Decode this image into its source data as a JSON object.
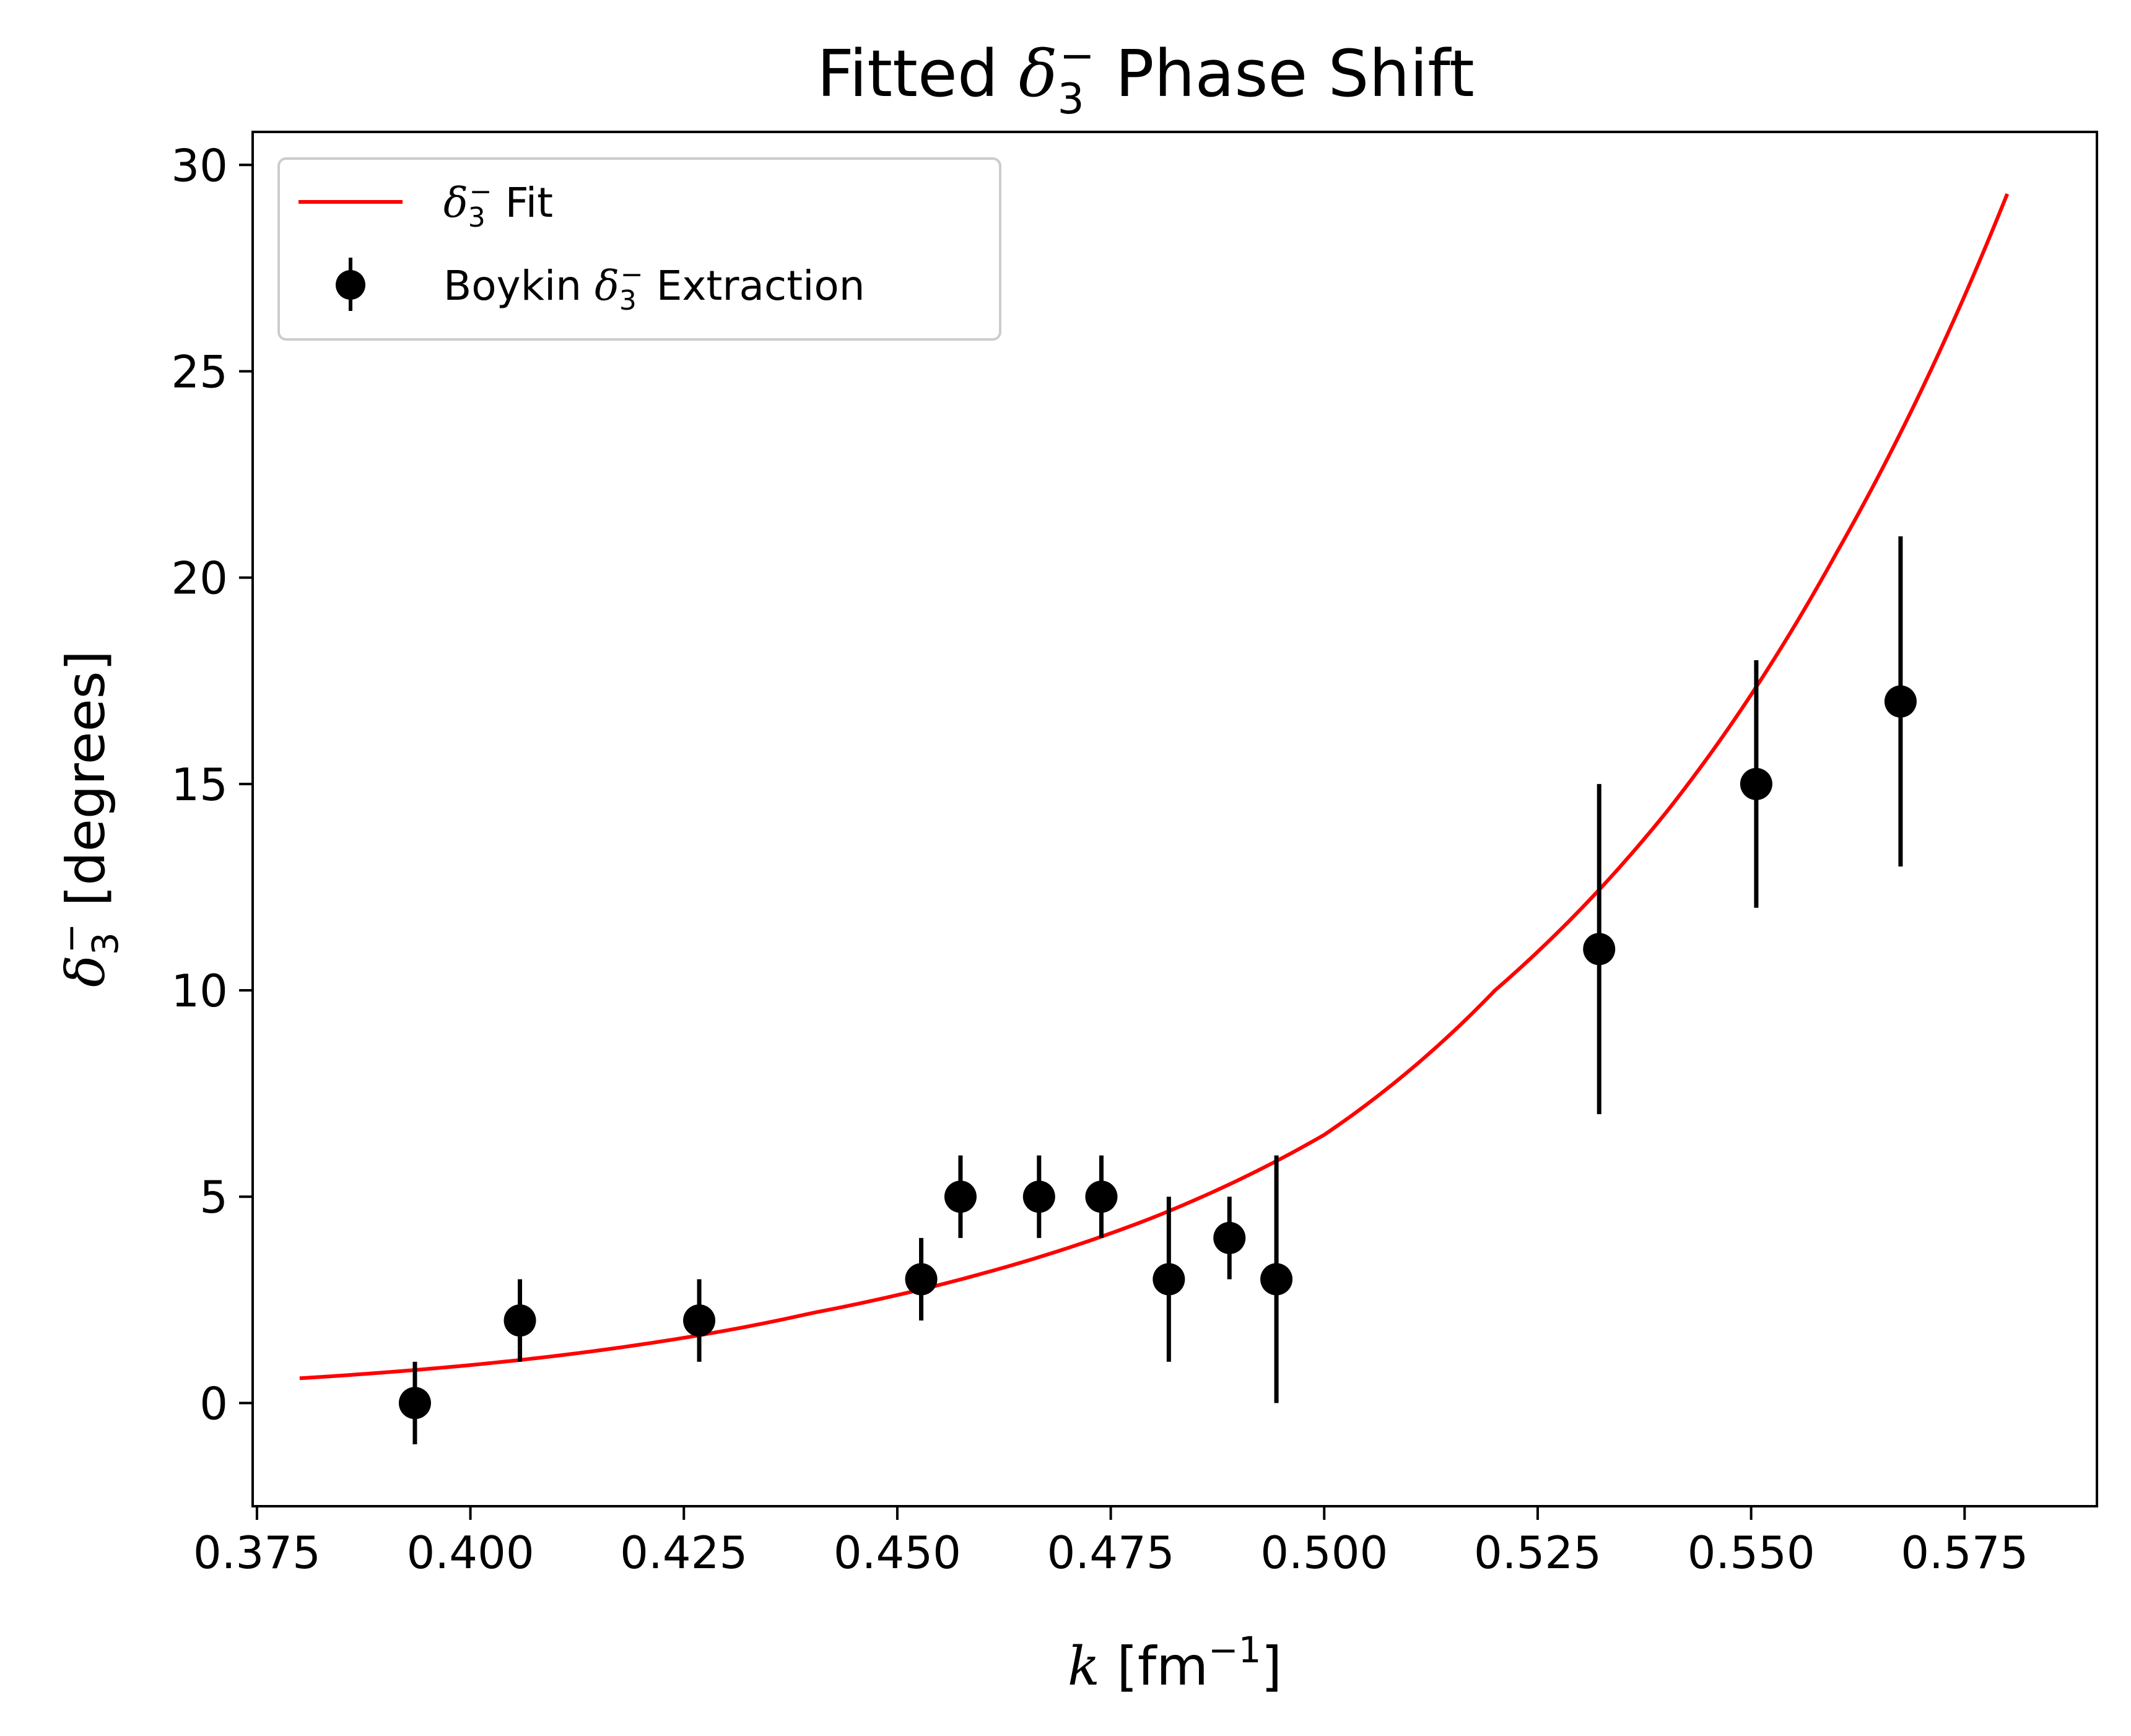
{
  "chart_data": {
    "type": "scatter",
    "title": {
      "prefix": "Fitted ",
      "symbol": "δ",
      "subscript": "3",
      "superscript": "−",
      "suffix": " Phase Shift"
    },
    "xlabel": {
      "symbol": "k",
      "text": " [fm",
      "superscript": "−1",
      "close": "]"
    },
    "ylabel": {
      "symbol": "δ",
      "subscript": "3",
      "superscript": "−",
      "text": " [degrees]"
    },
    "xlim": [
      0.3745,
      0.5905
    ],
    "ylim": [
      -2.5,
      30.8
    ],
    "xticks": [
      0.375,
      0.4,
      0.425,
      0.45,
      0.475,
      0.5,
      0.525,
      0.55,
      0.575
    ],
    "xtick_labels": [
      "0.375",
      "0.400",
      "0.425",
      "0.450",
      "0.475",
      "0.500",
      "0.525",
      "0.550",
      "0.575"
    ],
    "yticks": [
      0,
      5,
      10,
      15,
      20,
      25,
      30
    ],
    "ytick_labels": [
      "0",
      "5",
      "10",
      "15",
      "20",
      "25",
      "30"
    ],
    "grid": false,
    "legend_position": "upper-left",
    "series": [
      {
        "name": "Boykin δ3− Extraction",
        "legend": {
          "prefix": "Boykin ",
          "symbol": "δ",
          "subscript": "3",
          "superscript": "−",
          "suffix": " Extraction"
        },
        "kind": "errorbar",
        "color": "#000000",
        "x": [
          0.3935,
          0.4058,
          0.4268,
          0.4528,
          0.4574,
          0.4666,
          0.4739,
          0.4818,
          0.4889,
          0.4944,
          0.5322,
          0.5506,
          0.5675
        ],
        "y": [
          0,
          2,
          2,
          3,
          5,
          5,
          5,
          3,
          4,
          3,
          11,
          15,
          17
        ],
        "yerr": [
          1,
          1,
          1,
          1,
          1,
          1,
          1,
          2,
          1,
          3,
          4,
          3,
          4
        ]
      },
      {
        "name": "δ3− Fit",
        "legend": {
          "prefix": "",
          "symbol": "δ",
          "subscript": "3",
          "superscript": "−",
          "suffix": " Fit"
        },
        "kind": "line",
        "color": "#ff0000",
        "x_range": [
          0.38,
          0.58
        ],
        "x": [
          0.38,
          0.4,
          0.42,
          0.44,
          0.46,
          0.48,
          0.5,
          0.52,
          0.54,
          0.56,
          0.58
        ],
        "y": [
          0.6,
          0.92,
          1.42,
          2.18,
          3.14,
          4.5,
          6.5,
          10.0,
          14.3,
          20.6,
          29.3
        ]
      }
    ]
  }
}
